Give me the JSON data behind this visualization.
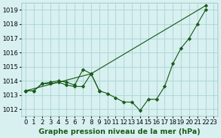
{
  "title": "Graphe pression niveau de la mer (hPa)",
  "bg_color": "#d8f0f0",
  "grid_color": "#b0d8d8",
  "line_color": "#1a5c1a",
  "marker_color": "#1a5c1a",
  "xlim": [
    -0.5,
    23.5
  ],
  "ylim": [
    1011.5,
    1019.5
  ],
  "yticks": [
    1012,
    1013,
    1014,
    1015,
    1016,
    1017,
    1018,
    1019
  ],
  "xticks": [
    0,
    1,
    2,
    3,
    4,
    5,
    6,
    7,
    8,
    9,
    10,
    11,
    12,
    13,
    14,
    15,
    16,
    17,
    18,
    19,
    20,
    21,
    22,
    23
  ],
  "line1": [
    1013.3,
    1013.3,
    1013.8,
    1013.8,
    1013.9,
    1013.7,
    1013.6,
    1013.6,
    1014.5,
    1013.3,
    1013.1,
    1012.8,
    1012.5,
    1012.5,
    1011.9,
    1012.7,
    1012.7,
    1013.6,
    1015.2,
    1016.3,
    1017.0,
    1018.0,
    1019.0
  ],
  "line2": [
    1013.3,
    1013.3,
    1013.8,
    1013.9,
    1014.0,
    1013.9,
    1013.7,
    1014.8,
    1014.5,
    1013.3,
    null,
    null,
    null,
    null,
    null,
    null,
    null,
    null,
    null,
    null,
    null,
    null,
    null
  ],
  "line3": [
    1013.3,
    null,
    null,
    null,
    null,
    null,
    null,
    null,
    1014.5,
    null,
    null,
    null,
    null,
    null,
    null,
    null,
    null,
    null,
    null,
    null,
    null,
    null,
    1019.3
  ],
  "xlabel_fontsize": 8,
  "tick_fontsize": 6.5,
  "title_fontsize": 7.5
}
